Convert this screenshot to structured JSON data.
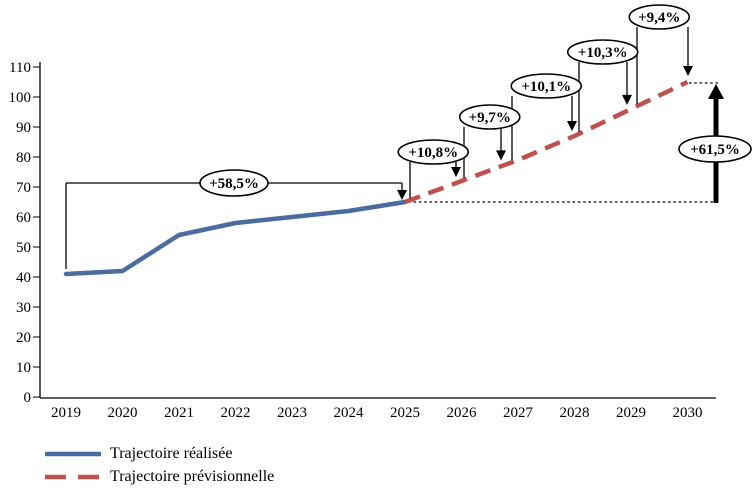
{
  "chart_data": {
    "type": "line",
    "title": "",
    "x_categories": [
      "2019",
      "2020",
      "2021",
      "2022",
      "2023",
      "2024",
      "2025",
      "2026",
      "2027",
      "2028",
      "2029",
      "2030"
    ],
    "y_ticks": [
      "0",
      "10",
      "20",
      "30",
      "40",
      "50",
      "60",
      "70",
      "80",
      "90",
      "100",
      "110"
    ],
    "ylim": [
      0,
      110
    ],
    "grid": false,
    "legend_position": "bottom-left",
    "series": [
      {
        "name": "Trajectoire réalisée",
        "style": "solid",
        "color": "#4b6c9e",
        "years": [
          2019,
          2020,
          2021,
          2022,
          2023,
          2024,
          2025
        ],
        "values": [
          41,
          42,
          54,
          58,
          60,
          62,
          65
        ]
      },
      {
        "name": "Trajectoire prévisionnelle",
        "style": "dashed",
        "color": "#c0504d",
        "years": [
          2025,
          2026,
          2027,
          2028,
          2029,
          2030
        ],
        "values": [
          65,
          72,
          79,
          87,
          96,
          105
        ]
      }
    ],
    "annotations": {
      "cumulative_realized": {
        "label": "+58,5%",
        "from_year": 2019,
        "to_year": 2025
      },
      "yearly_forecast": [
        {
          "label": "+10,8%",
          "from_year": 2025,
          "to_year": 2026
        },
        {
          "label": "+9,7%",
          "from_year": 2026,
          "to_year": 2027
        },
        {
          "label": "+10,1%",
          "from_year": 2027,
          "to_year": 2028
        },
        {
          "label": "+10,3%",
          "from_year": 2028,
          "to_year": 2029
        },
        {
          "label": "+9,4%",
          "from_year": 2029,
          "to_year": 2030
        }
      ],
      "cumulative_forecast": {
        "label": "+61,5%",
        "from_year": 2025,
        "to_year": 2030
      }
    },
    "annotation_colors": {
      "ellipse_fill": "#ffffff",
      "ellipse_stroke": "#000000",
      "arrow_color": "#000000"
    }
  }
}
